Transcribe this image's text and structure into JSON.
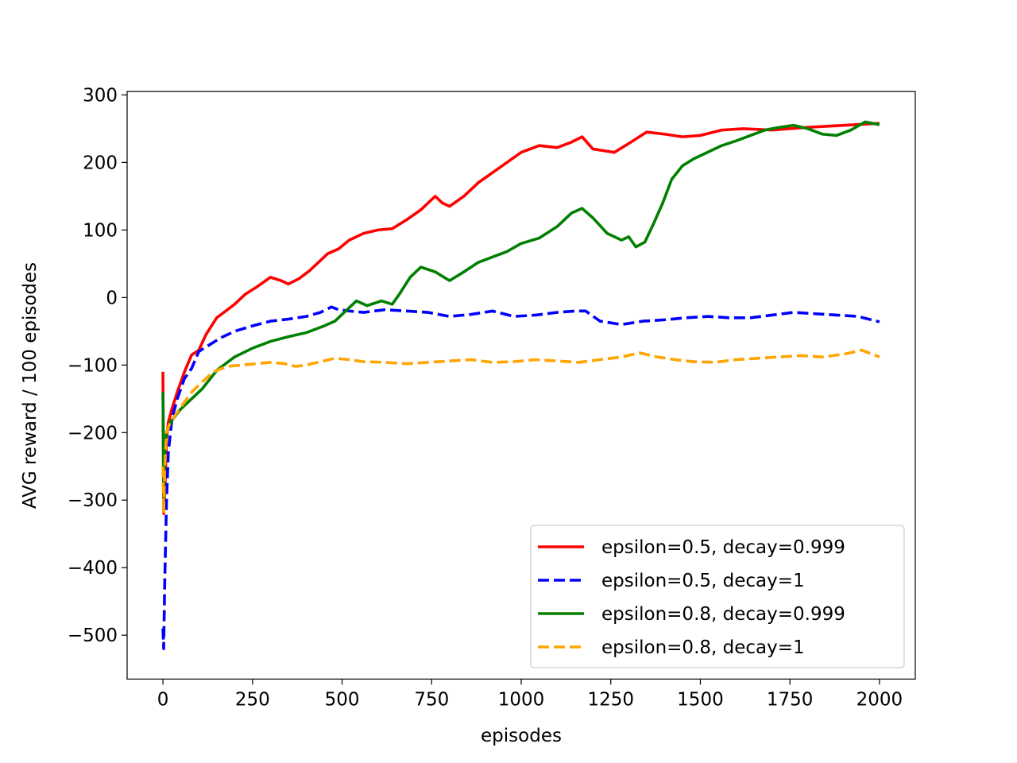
{
  "chart_data": {
    "type": "line",
    "title": "",
    "xlabel": "episodes",
    "ylabel": "AVG reward / 100 episodes",
    "xlim": [
      -100,
      2100
    ],
    "ylim": [
      -565,
      305
    ],
    "xticks": [
      0,
      250,
      500,
      750,
      1000,
      1250,
      1500,
      1750,
      2000
    ],
    "xtick_labels": [
      "0",
      "250",
      "500",
      "750",
      "1000",
      "1250",
      "1500",
      "1750",
      "2000"
    ],
    "yticks": [
      300,
      200,
      100,
      0,
      -100,
      -200,
      -300,
      -400,
      -500
    ],
    "ytick_labels": [
      "300",
      "200",
      "100",
      "0",
      "−100",
      "−200",
      "−300",
      "−400",
      "−500"
    ],
    "grid": false,
    "legend_position": "lower-right",
    "series": [
      {
        "name": "epsilon=0.5, decay=0.999",
        "color": "#ff0000",
        "dash": "solid",
        "points": [
          [
            0,
            -110
          ],
          [
            2,
            -320
          ],
          [
            5,
            -290
          ],
          [
            10,
            -210
          ],
          [
            15,
            -185
          ],
          [
            25,
            -165
          ],
          [
            40,
            -140
          ],
          [
            60,
            -110
          ],
          [
            80,
            -85
          ],
          [
            100,
            -78
          ],
          [
            120,
            -55
          ],
          [
            150,
            -30
          ],
          [
            180,
            -18
          ],
          [
            200,
            -10
          ],
          [
            230,
            5
          ],
          [
            260,
            15
          ],
          [
            300,
            30
          ],
          [
            330,
            25
          ],
          [
            350,
            20
          ],
          [
            380,
            28
          ],
          [
            410,
            40
          ],
          [
            440,
            55
          ],
          [
            460,
            65
          ],
          [
            490,
            72
          ],
          [
            520,
            85
          ],
          [
            560,
            95
          ],
          [
            600,
            100
          ],
          [
            640,
            102
          ],
          [
            680,
            115
          ],
          [
            720,
            130
          ],
          [
            760,
            150
          ],
          [
            780,
            140
          ],
          [
            800,
            135
          ],
          [
            840,
            150
          ],
          [
            880,
            170
          ],
          [
            920,
            185
          ],
          [
            960,
            200
          ],
          [
            1000,
            215
          ],
          [
            1050,
            225
          ],
          [
            1100,
            222
          ],
          [
            1140,
            230
          ],
          [
            1170,
            238
          ],
          [
            1200,
            220
          ],
          [
            1260,
            215
          ],
          [
            1300,
            228
          ],
          [
            1350,
            245
          ],
          [
            1400,
            242
          ],
          [
            1450,
            238
          ],
          [
            1500,
            240
          ],
          [
            1560,
            248
          ],
          [
            1620,
            250
          ],
          [
            1700,
            248
          ],
          [
            1800,
            252
          ],
          [
            1900,
            255
          ],
          [
            2000,
            258
          ]
        ]
      },
      {
        "name": "epsilon=0.5, decay=1",
        "color": "#0000ff",
        "dash": "dashed",
        "points": [
          [
            0,
            -490
          ],
          [
            2,
            -520
          ],
          [
            5,
            -420
          ],
          [
            10,
            -300
          ],
          [
            15,
            -230
          ],
          [
            25,
            -180
          ],
          [
            40,
            -150
          ],
          [
            60,
            -120
          ],
          [
            80,
            -105
          ],
          [
            100,
            -80
          ],
          [
            130,
            -70
          ],
          [
            160,
            -60
          ],
          [
            200,
            -50
          ],
          [
            250,
            -42
          ],
          [
            300,
            -35
          ],
          [
            350,
            -32
          ],
          [
            400,
            -28
          ],
          [
            440,
            -22
          ],
          [
            470,
            -14
          ],
          [
            490,
            -18
          ],
          [
            520,
            -20
          ],
          [
            560,
            -22
          ],
          [
            620,
            -18
          ],
          [
            680,
            -20
          ],
          [
            740,
            -22
          ],
          [
            800,
            -28
          ],
          [
            860,
            -25
          ],
          [
            920,
            -20
          ],
          [
            980,
            -28
          ],
          [
            1040,
            -26
          ],
          [
            1100,
            -22
          ],
          [
            1150,
            -20
          ],
          [
            1180,
            -20
          ],
          [
            1220,
            -35
          ],
          [
            1280,
            -40
          ],
          [
            1340,
            -35
          ],
          [
            1400,
            -33
          ],
          [
            1460,
            -30
          ],
          [
            1520,
            -28
          ],
          [
            1580,
            -30
          ],
          [
            1640,
            -30
          ],
          [
            1700,
            -26
          ],
          [
            1760,
            -22
          ],
          [
            1820,
            -24
          ],
          [
            1880,
            -26
          ],
          [
            1940,
            -28
          ],
          [
            2000,
            -36
          ]
        ]
      },
      {
        "name": "epsilon=0.8, decay=0.999",
        "color": "#008000",
        "dash": "solid",
        "points": [
          [
            0,
            -140
          ],
          [
            2,
            -300
          ],
          [
            5,
            -230
          ],
          [
            10,
            -200
          ],
          [
            20,
            -185
          ],
          [
            35,
            -175
          ],
          [
            50,
            -165
          ],
          [
            80,
            -150
          ],
          [
            110,
            -135
          ],
          [
            150,
            -108
          ],
          [
            200,
            -88
          ],
          [
            250,
            -75
          ],
          [
            300,
            -65
          ],
          [
            350,
            -58
          ],
          [
            400,
            -52
          ],
          [
            450,
            -42
          ],
          [
            480,
            -35
          ],
          [
            510,
            -20
          ],
          [
            540,
            -5
          ],
          [
            570,
            -12
          ],
          [
            610,
            -5
          ],
          [
            640,
            -10
          ],
          [
            660,
            5
          ],
          [
            690,
            30
          ],
          [
            720,
            45
          ],
          [
            760,
            38
          ],
          [
            800,
            25
          ],
          [
            840,
            38
          ],
          [
            880,
            52
          ],
          [
            920,
            60
          ],
          [
            960,
            68
          ],
          [
            1000,
            80
          ],
          [
            1050,
            88
          ],
          [
            1100,
            105
          ],
          [
            1140,
            125
          ],
          [
            1170,
            132
          ],
          [
            1200,
            118
          ],
          [
            1240,
            95
          ],
          [
            1280,
            85
          ],
          [
            1300,
            90
          ],
          [
            1320,
            75
          ],
          [
            1345,
            82
          ],
          [
            1370,
            110
          ],
          [
            1395,
            140
          ],
          [
            1420,
            175
          ],
          [
            1450,
            195
          ],
          [
            1480,
            205
          ],
          [
            1520,
            215
          ],
          [
            1560,
            225
          ],
          [
            1600,
            232
          ],
          [
            1640,
            240
          ],
          [
            1680,
            248
          ],
          [
            1720,
            252
          ],
          [
            1760,
            255
          ],
          [
            1800,
            250
          ],
          [
            1840,
            242
          ],
          [
            1880,
            240
          ],
          [
            1920,
            248
          ],
          [
            1960,
            260
          ],
          [
            2000,
            256
          ]
        ]
      },
      {
        "name": "epsilon=0.8, decay=1",
        "color": "#ffa500",
        "dash": "dashed",
        "points": [
          [
            0,
            -250
          ],
          [
            2,
            -320
          ],
          [
            5,
            -250
          ],
          [
            10,
            -200
          ],
          [
            20,
            -185
          ],
          [
            40,
            -170
          ],
          [
            60,
            -155
          ],
          [
            80,
            -140
          ],
          [
            110,
            -125
          ],
          [
            140,
            -110
          ],
          [
            180,
            -102
          ],
          [
            220,
            -100
          ],
          [
            260,
            -98
          ],
          [
            300,
            -96
          ],
          [
            340,
            -98
          ],
          [
            370,
            -102
          ],
          [
            400,
            -100
          ],
          [
            440,
            -95
          ],
          [
            480,
            -90
          ],
          [
            520,
            -92
          ],
          [
            560,
            -95
          ],
          [
            620,
            -96
          ],
          [
            680,
            -98
          ],
          [
            740,
            -96
          ],
          [
            800,
            -94
          ],
          [
            860,
            -92
          ],
          [
            920,
            -96
          ],
          [
            980,
            -95
          ],
          [
            1040,
            -92
          ],
          [
            1100,
            -94
          ],
          [
            1160,
            -96
          ],
          [
            1220,
            -92
          ],
          [
            1280,
            -88
          ],
          [
            1330,
            -82
          ],
          [
            1380,
            -88
          ],
          [
            1430,
            -92
          ],
          [
            1480,
            -95
          ],
          [
            1540,
            -96
          ],
          [
            1600,
            -92
          ],
          [
            1660,
            -90
          ],
          [
            1720,
            -88
          ],
          [
            1780,
            -86
          ],
          [
            1840,
            -88
          ],
          [
            1900,
            -84
          ],
          [
            1950,
            -78
          ],
          [
            2000,
            -88
          ]
        ]
      }
    ]
  }
}
